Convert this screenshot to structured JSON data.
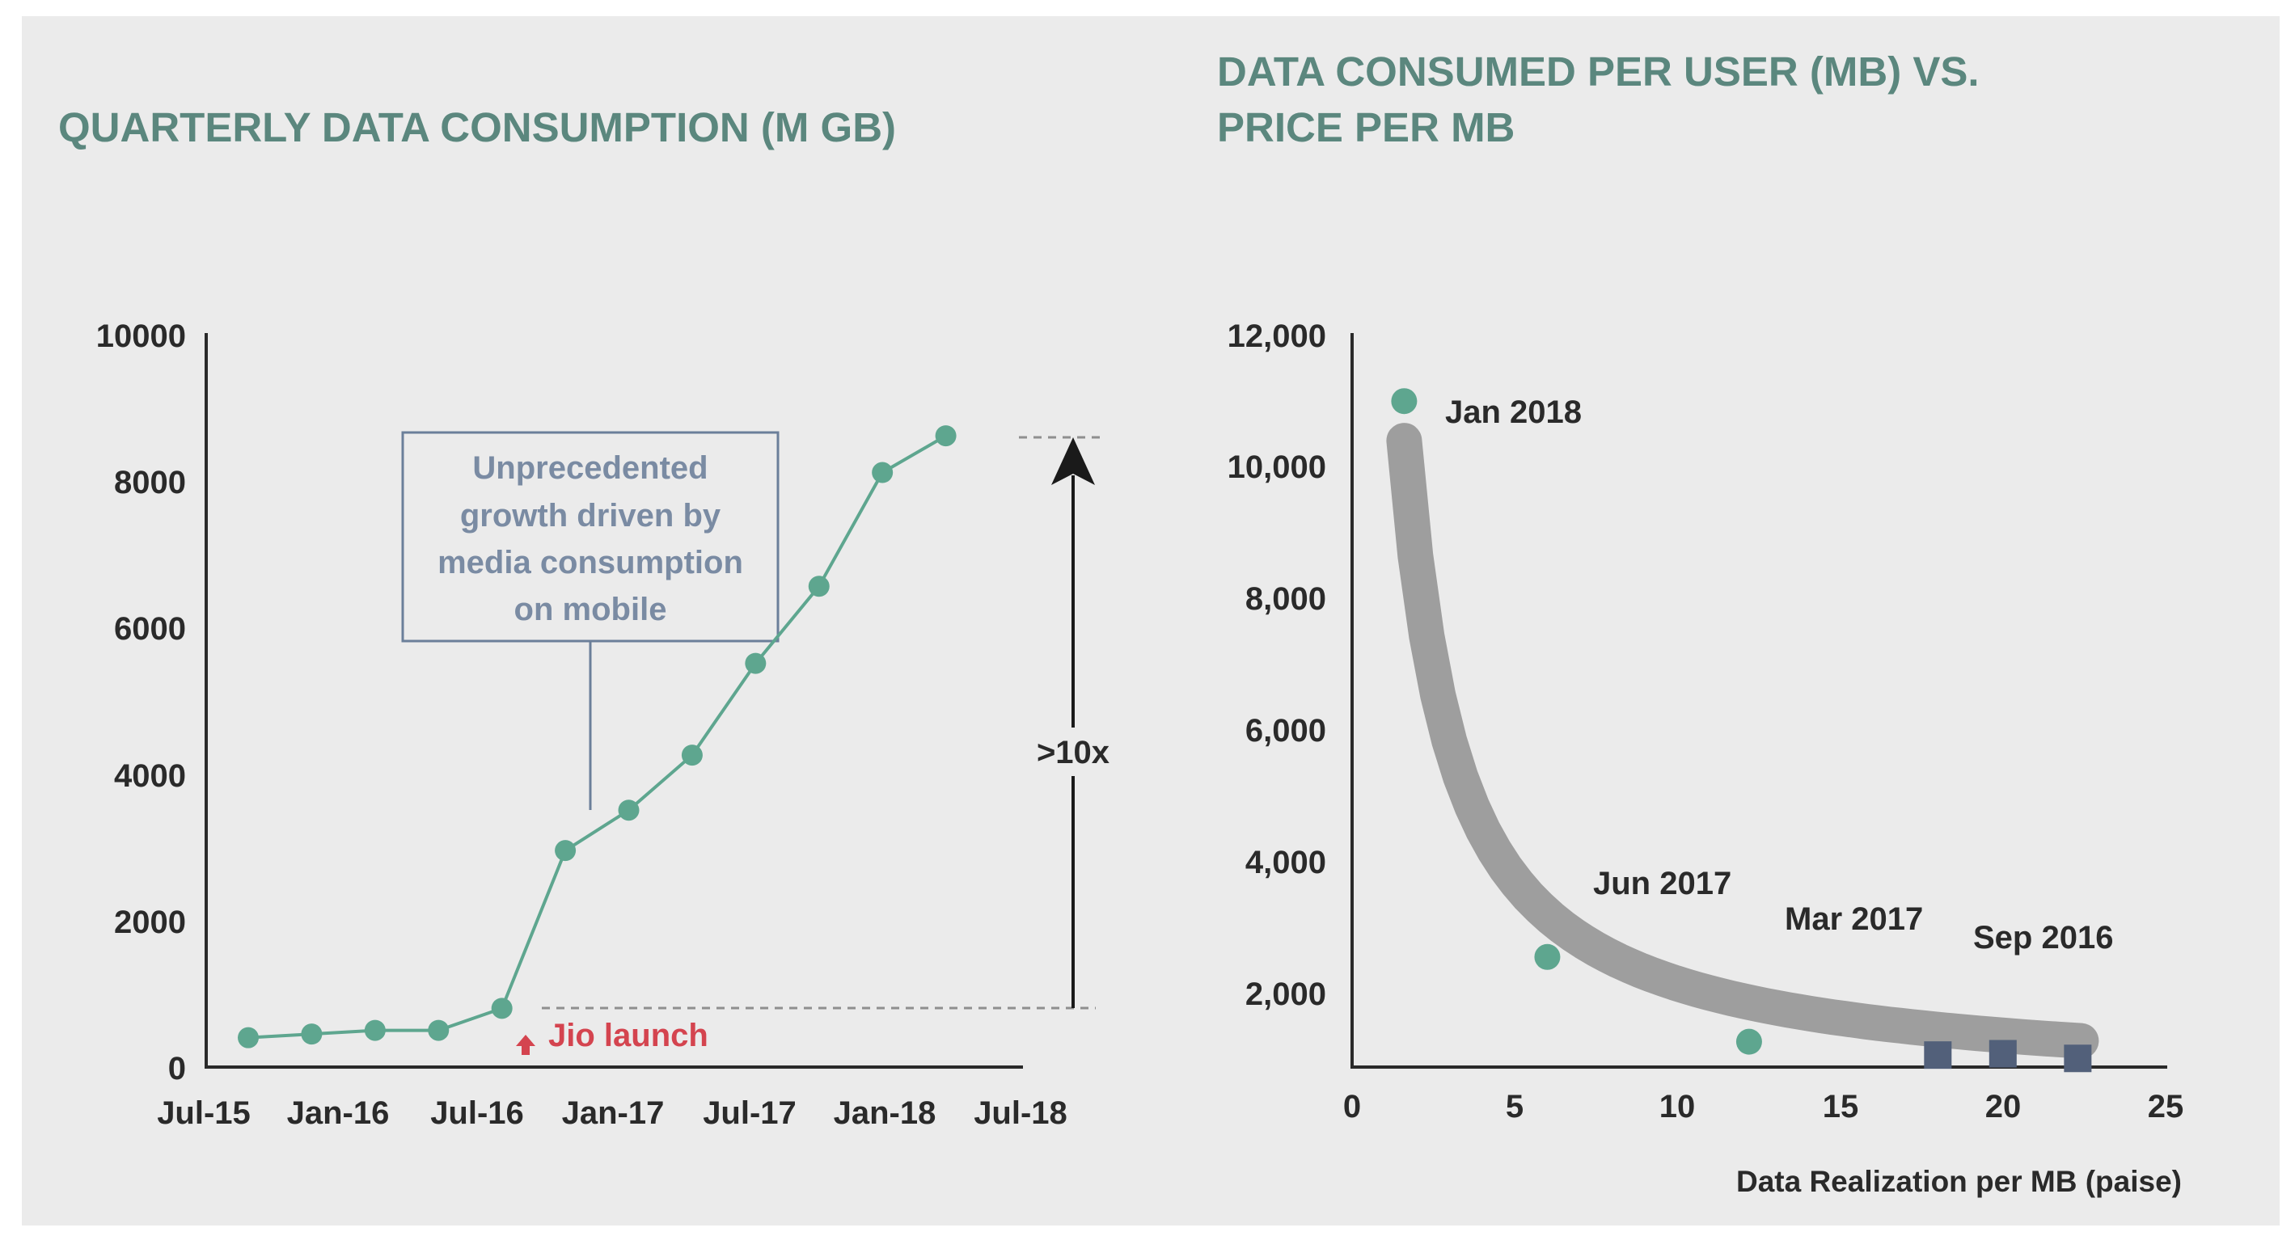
{
  "chart_data": [
    {
      "type": "line",
      "title": "QUARTERLY DATA CONSUMPTION (M GB)",
      "x_ticks": [
        "Jul-15",
        "Jan-16",
        "Jul-16",
        "Jan-17",
        "Jul-17",
        "Jan-18",
        "Jul-18"
      ],
      "y_ticks": [
        "10000",
        "8000",
        "6000",
        "4000",
        "2000",
        "0"
      ],
      "ylim": [
        0,
        10000
      ],
      "grid": false,
      "series": [
        {
          "x": [
            "Jul-15",
            "Oct-15",
            "Jan-16",
            "Apr-16",
            "Jul-16",
            "Oct-16",
            "Jan-17",
            "Apr-17",
            "Jul-17",
            "Oct-17",
            "Jan-18",
            "Apr-18",
            "Jul-18"
          ],
          "values": [
            400,
            450,
            500,
            500,
            800,
            2950,
            3500,
            4250,
            5500,
            6550,
            8100,
            8600,
            null
          ],
          "color": "#5ea68f"
        }
      ],
      "annotations": {
        "callout": [
          "Unprecedented",
          "growth driven by",
          "media consumption",
          "on mobile"
        ],
        "multiplier": ">10x",
        "event": "Jio launch"
      }
    },
    {
      "type": "scatter",
      "title": [
        "DATA CONSUMED PER USER (MB) VS.",
        "PRICE PER MB"
      ],
      "xlabel": "Data Realization per MB (paise)",
      "x_ticks": [
        "0",
        "5",
        "10",
        "15",
        "20",
        "25"
      ],
      "y_ticks": [
        "12,000",
        "10,000",
        "8,000",
        "6,000",
        "4,000",
        "2,000"
      ],
      "xlim": [
        0,
        25
      ],
      "ylim": [
        1000,
        12000
      ],
      "grid": false,
      "points": [
        {
          "x": 1.6,
          "y": 10980,
          "marker": "circle",
          "color": "#5ea68f"
        },
        {
          "x": 6.0,
          "y": 2650,
          "marker": "circle",
          "color": "#5ea68f"
        },
        {
          "x": 12.2,
          "y": 1380,
          "marker": "circle",
          "color": "#5ea68f"
        },
        {
          "x": 18.0,
          "y": 1180,
          "marker": "square",
          "color": "#52607a"
        },
        {
          "x": 20.0,
          "y": 1200,
          "marker": "square",
          "color": "#52607a"
        },
        {
          "x": 22.3,
          "y": 1130,
          "marker": "square",
          "color": "#52607a"
        }
      ],
      "point_labels": [
        "Jan 2018",
        "Jun 2017",
        "Mar 2017",
        "Sep 2016"
      ],
      "trend_color": "#9e9e9e"
    }
  ]
}
